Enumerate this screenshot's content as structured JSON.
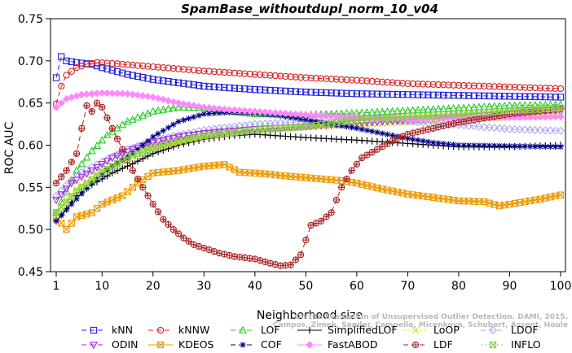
{
  "chart_data": {
    "type": "line",
    "title": "SpamBase_withoutdupl_norm_10_v04",
    "xlabel": "Neighborhood size",
    "ylabel": "ROC AUC",
    "xlim": [
      1,
      100
    ],
    "ylim": [
      0.45,
      0.75
    ],
    "xticks": [
      1,
      10,
      20,
      30,
      40,
      50,
      60,
      70,
      80,
      90,
      100
    ],
    "yticks": [
      "0.45",
      "0.50",
      "0.55",
      "0.60",
      "0.65",
      "0.70",
      "0.75"
    ],
    "grid": false,
    "legend_position": "bottom",
    "watermark": [
      "Campos, Zimek, Sander, Campello, Micenkova, Schubert, Assent, Houle",
      "On the Evaluation of Unsupervised Outlier Detection. DAMI, 2015."
    ],
    "series": [
      {
        "name": "kNN",
        "color": "#2222dd",
        "marker": "square",
        "dash": "6,4",
        "points": [
          [
            1,
            0.68
          ],
          [
            2,
            0.705
          ],
          [
            3,
            0.7
          ],
          [
            5,
            0.698
          ],
          [
            8,
            0.696
          ],
          [
            10,
            0.692
          ],
          [
            15,
            0.684
          ],
          [
            20,
            0.678
          ],
          [
            30,
            0.67
          ],
          [
            40,
            0.666
          ],
          [
            50,
            0.663
          ],
          [
            60,
            0.661
          ],
          [
            70,
            0.66
          ],
          [
            80,
            0.659
          ],
          [
            90,
            0.658
          ],
          [
            100,
            0.657
          ]
        ]
      },
      {
        "name": "kNNW",
        "color": "#dd2222",
        "marker": "circle",
        "dash": "6,4",
        "points": [
          [
            1,
            0.649
          ],
          [
            2,
            0.67
          ],
          [
            3,
            0.683
          ],
          [
            5,
            0.692
          ],
          [
            7,
            0.696
          ],
          [
            9,
            0.698
          ],
          [
            12,
            0.697
          ],
          [
            20,
            0.693
          ],
          [
            30,
            0.688
          ],
          [
            40,
            0.684
          ],
          [
            50,
            0.68
          ],
          [
            60,
            0.677
          ],
          [
            70,
            0.673
          ],
          [
            80,
            0.671
          ],
          [
            90,
            0.669
          ],
          [
            100,
            0.667
          ]
        ]
      },
      {
        "name": "LOF",
        "color": "#22cc22",
        "marker": "triangle-up",
        "dash": "6,4",
        "points": [
          [
            1,
            0.52
          ],
          [
            3,
            0.545
          ],
          [
            5,
            0.57
          ],
          [
            8,
            0.593
          ],
          [
            11,
            0.612
          ],
          [
            15,
            0.628
          ],
          [
            20,
            0.64
          ],
          [
            25,
            0.645
          ],
          [
            30,
            0.644
          ],
          [
            35,
            0.64
          ],
          [
            40,
            0.637
          ],
          [
            50,
            0.636
          ],
          [
            60,
            0.638
          ],
          [
            70,
            0.641
          ],
          [
            80,
            0.644
          ],
          [
            90,
            0.647
          ],
          [
            100,
            0.648
          ]
        ]
      },
      {
        "name": "SimplifiedLOF",
        "color": "#000000",
        "marker": "plus",
        "dash": "",
        "points": [
          [
            1,
            0.51
          ],
          [
            3,
            0.525
          ],
          [
            5,
            0.54
          ],
          [
            8,
            0.553
          ],
          [
            12,
            0.567
          ],
          [
            16,
            0.578
          ],
          [
            20,
            0.59
          ],
          [
            25,
            0.6
          ],
          [
            30,
            0.607
          ],
          [
            35,
            0.611
          ],
          [
            40,
            0.613
          ],
          [
            45,
            0.611
          ],
          [
            50,
            0.609
          ],
          [
            60,
            0.606
          ],
          [
            70,
            0.602
          ],
          [
            80,
            0.598
          ],
          [
            90,
            0.598
          ],
          [
            100,
            0.6
          ]
        ]
      },
      {
        "name": "LoOP",
        "color": "#dddd00",
        "marker": "x",
        "dash": "2,3",
        "points": [
          [
            1,
            0.52
          ],
          [
            5,
            0.548
          ],
          [
            10,
            0.57
          ],
          [
            15,
            0.585
          ],
          [
            20,
            0.596
          ],
          [
            25,
            0.603
          ],
          [
            30,
            0.61
          ],
          [
            40,
            0.618
          ],
          [
            50,
            0.622
          ],
          [
            60,
            0.624
          ],
          [
            70,
            0.627
          ],
          [
            80,
            0.63
          ],
          [
            90,
            0.633
          ],
          [
            100,
            0.635
          ]
        ]
      },
      {
        "name": "LDOF",
        "color": "#aaaaee",
        "marker": "diamond",
        "dash": "6,4",
        "points": [
          [
            1,
            0.54
          ],
          [
            5,
            0.565
          ],
          [
            10,
            0.58
          ],
          [
            15,
            0.595
          ],
          [
            20,
            0.605
          ],
          [
            25,
            0.612
          ],
          [
            30,
            0.618
          ],
          [
            40,
            0.625
          ],
          [
            50,
            0.628
          ],
          [
            60,
            0.63
          ],
          [
            70,
            0.628
          ],
          [
            80,
            0.624
          ],
          [
            90,
            0.619
          ],
          [
            100,
            0.617
          ]
        ]
      },
      {
        "name": "ODIN",
        "color": "#aa22dd",
        "marker": "triangle-down",
        "dash": "6,4",
        "points": [
          [
            1,
            0.535
          ],
          [
            4,
            0.555
          ],
          [
            8,
            0.57
          ],
          [
            12,
            0.585
          ],
          [
            16,
            0.595
          ],
          [
            20,
            0.603
          ],
          [
            25,
            0.61
          ],
          [
            30,
            0.614
          ],
          [
            40,
            0.619
          ],
          [
            50,
            0.622
          ],
          [
            60,
            0.626
          ],
          [
            70,
            0.63
          ],
          [
            80,
            0.633
          ],
          [
            90,
            0.637
          ],
          [
            100,
            0.64
          ]
        ]
      },
      {
        "name": "KDEOS",
        "color": "#ee9900",
        "marker": "square-x",
        "dash": "",
        "points": [
          [
            1,
            0.515
          ],
          [
            3,
            0.5
          ],
          [
            5,
            0.515
          ],
          [
            8,
            0.52
          ],
          [
            10,
            0.53
          ],
          [
            14,
            0.54
          ],
          [
            17,
            0.555
          ],
          [
            20,
            0.567
          ],
          [
            25,
            0.57
          ],
          [
            30,
            0.575
          ],
          [
            34,
            0.577
          ],
          [
            37,
            0.568
          ],
          [
            42,
            0.566
          ],
          [
            47,
            0.563
          ],
          [
            53,
            0.56
          ],
          [
            57,
            0.558
          ],
          [
            60,
            0.555
          ],
          [
            65,
            0.548
          ],
          [
            70,
            0.542
          ],
          [
            75,
            0.538
          ],
          [
            80,
            0.534
          ],
          [
            85,
            0.533
          ],
          [
            88,
            0.528
          ],
          [
            92,
            0.532
          ],
          [
            96,
            0.536
          ],
          [
            100,
            0.541
          ]
        ]
      },
      {
        "name": "COF",
        "color": "#000088",
        "marker": "star",
        "dash": "6,4",
        "points": [
          [
            1,
            0.51
          ],
          [
            4,
            0.53
          ],
          [
            8,
            0.555
          ],
          [
            12,
            0.575
          ],
          [
            16,
            0.59
          ],
          [
            20,
            0.61
          ],
          [
            25,
            0.628
          ],
          [
            30,
            0.637
          ],
          [
            35,
            0.639
          ],
          [
            40,
            0.638
          ],
          [
            45,
            0.635
          ],
          [
            50,
            0.63
          ],
          [
            55,
            0.625
          ],
          [
            60,
            0.62
          ],
          [
            65,
            0.614
          ],
          [
            70,
            0.608
          ],
          [
            75,
            0.603
          ],
          [
            80,
            0.6
          ],
          [
            90,
            0.599
          ],
          [
            100,
            0.598
          ]
        ]
      },
      {
        "name": "FastABOD",
        "color": "#ff88ff",
        "marker": "diamond-filled",
        "dash": "",
        "points": [
          [
            1,
            0.645
          ],
          [
            3,
            0.655
          ],
          [
            6,
            0.66
          ],
          [
            10,
            0.662
          ],
          [
            15,
            0.661
          ],
          [
            20,
            0.657
          ],
          [
            25,
            0.65
          ],
          [
            30,
            0.645
          ],
          [
            35,
            0.642
          ],
          [
            40,
            0.64
          ],
          [
            45,
            0.638
          ],
          [
            50,
            0.636
          ],
          [
            60,
            0.633
          ],
          [
            70,
            0.631
          ],
          [
            80,
            0.632
          ],
          [
            90,
            0.633
          ],
          [
            100,
            0.634
          ]
        ]
      },
      {
        "name": "LDF",
        "color": "#aa2222",
        "marker": "circle-plus",
        "dash": "6,4",
        "points": [
          [
            1,
            0.555
          ],
          [
            3,
            0.57
          ],
          [
            5,
            0.59
          ],
          [
            6,
            0.62
          ],
          [
            7,
            0.647
          ],
          [
            8,
            0.64
          ],
          [
            9,
            0.65
          ],
          [
            10,
            0.645
          ],
          [
            12,
            0.62
          ],
          [
            14,
            0.595
          ],
          [
            16,
            0.57
          ],
          [
            18,
            0.55
          ],
          [
            20,
            0.53
          ],
          [
            22,
            0.512
          ],
          [
            24,
            0.5
          ],
          [
            26,
            0.49
          ],
          [
            28,
            0.482
          ],
          [
            30,
            0.478
          ],
          [
            33,
            0.472
          ],
          [
            36,
            0.468
          ],
          [
            40,
            0.465
          ],
          [
            43,
            0.46
          ],
          [
            45,
            0.457
          ],
          [
            47,
            0.458
          ],
          [
            49,
            0.47
          ],
          [
            51,
            0.505
          ],
          [
            53,
            0.51
          ],
          [
            55,
            0.52
          ],
          [
            57,
            0.55
          ],
          [
            59,
            0.57
          ],
          [
            61,
            0.585
          ],
          [
            64,
            0.595
          ],
          [
            67,
            0.605
          ],
          [
            70,
            0.613
          ],
          [
            75,
            0.62
          ],
          [
            80,
            0.627
          ],
          [
            85,
            0.632
          ],
          [
            90,
            0.637
          ],
          [
            95,
            0.64
          ],
          [
            100,
            0.643
          ]
        ]
      },
      {
        "name": "INFLO",
        "color": "#88cc44",
        "marker": "square-x",
        "dash": "2,3",
        "points": [
          [
            1,
            0.52
          ],
          [
            5,
            0.545
          ],
          [
            10,
            0.568
          ],
          [
            15,
            0.585
          ],
          [
            20,
            0.597
          ],
          [
            25,
            0.605
          ],
          [
            30,
            0.611
          ],
          [
            40,
            0.618
          ],
          [
            50,
            0.622
          ],
          [
            60,
            0.63
          ],
          [
            70,
            0.634
          ],
          [
            80,
            0.637
          ],
          [
            90,
            0.641
          ],
          [
            100,
            0.644
          ]
        ]
      }
    ]
  }
}
